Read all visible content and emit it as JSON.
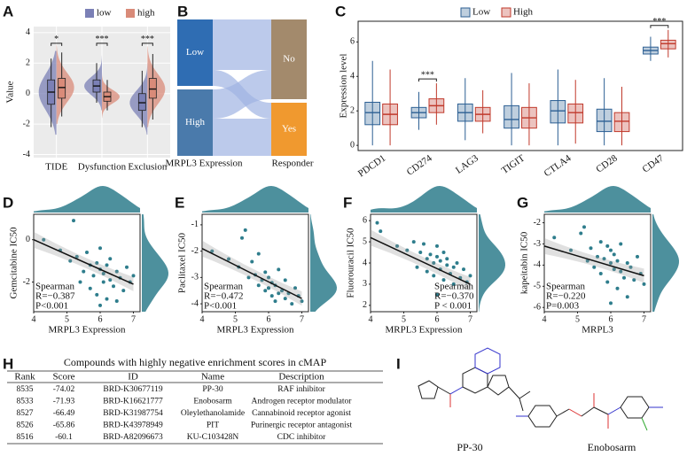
{
  "chart_data": [
    {
      "type": "violin",
      "letter": "A",
      "ylabel": "Value",
      "categories": [
        "TIDE",
        "Dysfunction",
        "Exclusion"
      ],
      "ylim": [
        -4.2,
        4.4
      ],
      "yticks": [
        -4,
        -2,
        0,
        2,
        4
      ],
      "grid": true,
      "legend": "top",
      "annotations": [
        "*",
        "***",
        "***"
      ],
      "series": [
        {
          "name": "low",
          "color": "#7b80b6",
          "median": [
            0.1,
            0.5,
            -0.6
          ],
          "q1": [
            -0.7,
            0.1,
            -1.1
          ],
          "q3": [
            0.9,
            0.9,
            0.0
          ],
          "min": [
            -2.2,
            -0.6,
            -2.2
          ],
          "max": [
            2.3,
            2.0,
            1.5
          ]
        },
        {
          "name": "high",
          "color": "#d98b79",
          "median": [
            0.4,
            -0.2,
            0.3
          ],
          "q1": [
            -0.3,
            -0.5,
            -0.3
          ],
          "q3": [
            1.0,
            0.1,
            1.0
          ],
          "min": [
            -1.5,
            -1.1,
            -1.7
          ],
          "max": [
            2.7,
            0.9,
            2.6
          ]
        }
      ]
    },
    {
      "type": "sankey",
      "letter": "B",
      "left_label": "MRPL3 Expression",
      "right_label": "Responder",
      "left": [
        "Low",
        "High"
      ],
      "right": [
        "No",
        "Yes"
      ],
      "left_colors": [
        "#2f6db3",
        "#4a7aab"
      ],
      "right_colors": [
        "#a38a6c",
        "#f0992f"
      ],
      "flow_color": "#9fb4e3",
      "flows": [
        [
          38,
          12
        ],
        [
          22,
          28
        ]
      ]
    },
    {
      "type": "box",
      "letter": "C",
      "ylabel": "Expression level",
      "categories": [
        "PDCD1",
        "CD274",
        "LAG3",
        "TIGIT",
        "CTLA4",
        "CD28",
        "CD47"
      ],
      "ylim": [
        -0.3,
        7.2
      ],
      "yticks": [
        0,
        2,
        4,
        6
      ],
      "legend": "top",
      "annotations": [
        null,
        "***",
        null,
        null,
        null,
        null,
        "***"
      ],
      "series": [
        {
          "name": "Low",
          "color": "#2c5f93",
          "median": [
            1.9,
            1.9,
            1.9,
            1.5,
            2.0,
            1.4,
            5.5
          ],
          "q1": [
            1.2,
            1.6,
            1.4,
            1.0,
            1.3,
            0.8,
            5.3
          ],
          "q3": [
            2.5,
            2.2,
            2.4,
            2.3,
            2.6,
            2.1,
            5.7
          ],
          "min": [
            0,
            0.9,
            0.3,
            0,
            0,
            0,
            4.9
          ],
          "max": [
            4.9,
            3.1,
            3.9,
            4.2,
            4.4,
            3.9,
            6.3
          ]
        },
        {
          "name": "High",
          "color": "#c0392b",
          "median": [
            1.8,
            2.3,
            1.8,
            1.6,
            1.9,
            1.4,
            5.9
          ],
          "q1": [
            1.2,
            1.9,
            1.4,
            1.0,
            1.3,
            0.8,
            5.6
          ],
          "q3": [
            2.4,
            2.7,
            2.2,
            2.2,
            2.4,
            1.9,
            6.1
          ],
          "min": [
            0,
            1.2,
            0.7,
            0,
            0.1,
            0,
            5.1
          ],
          "max": [
            4.4,
            3.6,
            3.2,
            3.6,
            3.8,
            3.4,
            6.7
          ]
        }
      ]
    },
    {
      "type": "scatter",
      "letter": "D",
      "xlabel": "MRPL3 Expression",
      "ylabel": "Gemcitabine IC50",
      "color": "#2e7d8c",
      "xlim": [
        4,
        7.2
      ],
      "xticks": [
        4,
        5,
        6,
        7
      ],
      "ylim": [
        -3.4,
        1.2
      ],
      "yticks": [
        -2,
        0
      ],
      "annotation_corner": "bottom-left",
      "annotations": [
        "Spearman",
        "R=−0.387",
        "P<0.001"
      ],
      "x": [
        4.3,
        4.8,
        5.1,
        5.3,
        5.4,
        5.5,
        5.6,
        5.7,
        5.7,
        5.8,
        5.9,
        5.9,
        6.0,
        6.0,
        6.1,
        6.1,
        6.2,
        6.2,
        6.3,
        6.3,
        6.4,
        6.5,
        6.5,
        6.6,
        6.7,
        6.8,
        6.9,
        7.0,
        5.2,
        6.0
      ],
      "y": [
        0.0,
        -0.5,
        -1.0,
        -0.8,
        -2.0,
        -1.5,
        -0.6,
        -1.2,
        -2.3,
        -1.7,
        -1.1,
        -2.6,
        -1.4,
        -0.4,
        -2.0,
        -1.6,
        -2.8,
        -1.2,
        -1.9,
        -0.9,
        -2.2,
        -1.5,
        -2.9,
        -1.8,
        -2.4,
        -1.3,
        -2.0,
        -1.7,
        0.9,
        -3.1
      ],
      "fit": {
        "x": [
          4,
          7
        ],
        "y": [
          0.0,
          -2.1
        ]
      }
    },
    {
      "type": "scatter",
      "letter": "E",
      "xlabel": "MRPL3 Expression",
      "ylabel": "Paclitaxel IC50",
      "color": "#2e7d8c",
      "xlim": [
        4,
        7.2
      ],
      "xticks": [
        4,
        5,
        6,
        7
      ],
      "ylim": [
        -4.3,
        -0.6
      ],
      "yticks": [
        -4,
        -3,
        -2,
        -1
      ],
      "annotation_corner": "bottom-left",
      "annotations": [
        "Spearman",
        "R=−0.472",
        "P<0.001"
      ],
      "x": [
        4.3,
        4.8,
        5.1,
        5.3,
        5.4,
        5.5,
        5.6,
        5.7,
        5.7,
        5.8,
        5.9,
        5.9,
        6.0,
        6.0,
        6.1,
        6.1,
        6.2,
        6.2,
        6.3,
        6.3,
        6.4,
        6.5,
        6.5,
        6.6,
        6.7,
        6.8,
        6.9,
        7.0,
        5.2,
        6.0
      ],
      "y": [
        -2.0,
        -2.3,
        -2.6,
        -1.2,
        -3.0,
        -2.4,
        -2.9,
        -3.3,
        -2.1,
        -3.1,
        -3.5,
        -2.8,
        -3.4,
        -3.0,
        -3.7,
        -3.2,
        -3.9,
        -3.3,
        -3.6,
        -2.7,
        -3.5,
        -3.8,
        -3.1,
        -3.6,
        -4.0,
        -3.4,
        -3.7,
        -3.9,
        -1.5,
        -3.4
      ],
      "fit": {
        "x": [
          4,
          7
        ],
        "y": [
          -1.9,
          -3.8
        ]
      }
    },
    {
      "type": "scatter",
      "letter": "F",
      "xlabel": "MRPL3 Expression",
      "ylabel": "Fluorouracil IC50",
      "color": "#2e7d8c",
      "xlim": [
        4,
        7.2
      ],
      "xticks": [
        4,
        5,
        6,
        7
      ],
      "ylim": [
        1.7,
        6.3
      ],
      "yticks": [
        2,
        3,
        4,
        5,
        6
      ],
      "annotation_corner": "bottom-right",
      "annotations": [
        "Spearman",
        "R=−0.370",
        "P < 0.001"
      ],
      "x": [
        4.3,
        4.8,
        5.1,
        5.3,
        5.4,
        5.5,
        5.6,
        5.7,
        5.7,
        5.8,
        5.9,
        5.9,
        6.0,
        6.0,
        6.1,
        6.1,
        6.2,
        6.2,
        6.3,
        6.3,
        6.4,
        6.5,
        6.5,
        6.6,
        6.7,
        6.8,
        6.9,
        7.0,
        4.2,
        6.0
      ],
      "y": [
        5.5,
        4.8,
        4.6,
        5.0,
        3.8,
        4.5,
        4.9,
        4.2,
        3.6,
        4.4,
        4.0,
        3.4,
        4.3,
        4.8,
        3.7,
        4.1,
        3.2,
        4.5,
        3.9,
        4.2,
        3.5,
        3.8,
        3.0,
        4.0,
        3.3,
        3.7,
        3.1,
        3.4,
        5.9,
        2.5
      ],
      "fit": {
        "x": [
          4,
          7
        ],
        "y": [
          5.2,
          3.0
        ]
      }
    },
    {
      "type": "scatter",
      "letter": "G",
      "xlabel": "MRPL3",
      "ylabel": "kapeitabin IC50",
      "color": "#2e7d8c",
      "xlim": [
        4,
        7.2
      ],
      "xticks": [
        4,
        5,
        6,
        7
      ],
      "ylim": [
        -6.2,
        -1.6
      ],
      "yticks": [
        -6,
        -5,
        -4,
        -3,
        -2
      ],
      "annotation_corner": "bottom-left",
      "annotations": [
        "Spearman",
        "R=−0.220",
        "P=0.003"
      ],
      "x": [
        4.3,
        4.8,
        5.1,
        5.3,
        5.4,
        5.5,
        5.6,
        5.7,
        5.7,
        5.8,
        5.9,
        5.9,
        6.0,
        6.0,
        6.1,
        6.1,
        6.2,
        6.2,
        6.3,
        6.3,
        6.4,
        6.5,
        6.5,
        6.6,
        6.7,
        6.8,
        6.9,
        7.0,
        5.2,
        6.0
      ],
      "y": [
        -2.7,
        -3.3,
        -2.5,
        -3.8,
        -3.2,
        -4.1,
        -3.6,
        -2.9,
        -4.4,
        -3.7,
        -3.1,
        -4.8,
        -3.9,
        -3.3,
        -4.2,
        -3.5,
        -5.1,
        -3.8,
        -4.3,
        -3.0,
        -4.6,
        -3.9,
        -5.5,
        -4.1,
        -4.7,
        -3.6,
        -4.4,
        -4.9,
        -2.2,
        -5.8
      ],
      "fit": {
        "x": [
          4,
          7
        ],
        "y": [
          -3.1,
          -4.5
        ]
      }
    }
  ],
  "table": {
    "letter": "H",
    "title": "Compounds with highly negative enrichment scores in cMAP",
    "columns": [
      "Rank",
      "Score",
      "ID",
      "Name",
      "Description"
    ],
    "rows": [
      [
        8535,
        -74.02,
        "BRD-K30677119",
        "PP-30",
        "RAF inhibitor"
      ],
      [
        8533,
        -71.93,
        "BRD-K16621777",
        "Enobosarm",
        "Androgen receptor modulator"
      ],
      [
        8527,
        -66.49,
        "BRD-K31987754",
        "Oleylethanolamide",
        "Cannabinoid receptor agonist"
      ],
      [
        8526,
        -65.86,
        "BRD-K43978949",
        "PIT",
        "Purinergic receptor antagonist"
      ],
      [
        8516,
        -60.1,
        "BRD-A82096673",
        "KU-C103428N",
        "CDC inhibitor"
      ]
    ]
  },
  "structures": {
    "letter": "I",
    "labels": [
      "PP-30",
      "Enobosarm"
    ]
  }
}
